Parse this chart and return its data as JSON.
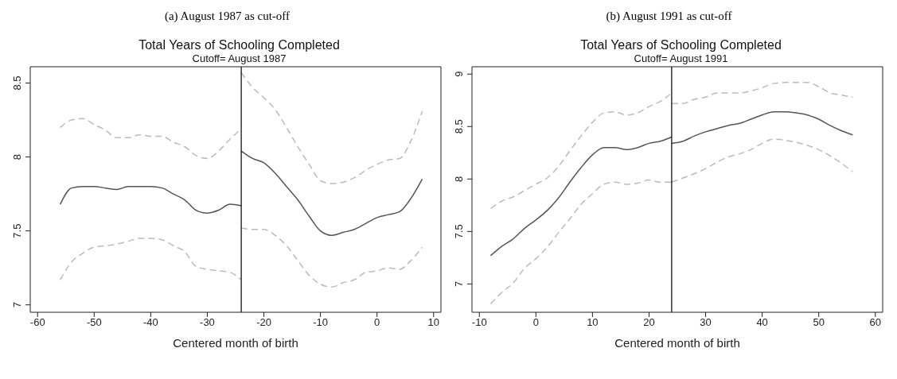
{
  "chart_data": [
    {
      "type": "line",
      "title": "Total Years of Schooling Completed",
      "subtitle": "Cutoff= August 1987",
      "xlabel": "Centered month of birth",
      "annotations": [
        "(a) August 1987 as cut-off"
      ],
      "xlim": [
        -61.3,
        11.3
      ],
      "ylim": [
        6.95,
        8.61
      ],
      "xticks": [
        -60,
        -50,
        -40,
        -30,
        -20,
        -10,
        0,
        10
      ],
      "yticks": [
        7,
        7.5,
        8,
        8.5
      ],
      "grid": false,
      "legend": false,
      "line_style": "solid",
      "marker": "none",
      "ref_lines": [
        {
          "axis": "x",
          "value": -24,
          "color": "#000000"
        }
      ],
      "series": [
        {
          "color": "#555555",
          "x": [
            -56,
            -54,
            -52,
            -50,
            -48,
            -46,
            -44,
            -42,
            -40,
            -38,
            -36,
            -34,
            -32,
            -30,
            -28,
            -26,
            -24
          ],
          "values": [
            7.68,
            7.79,
            7.8,
            7.8,
            7.79,
            7.78,
            7.8,
            7.8,
            7.8,
            7.79,
            7.75,
            7.71,
            7.64,
            7.62,
            7.64,
            7.68,
            7.67
          ]
        },
        {
          "color": "#bbbbbb",
          "line_style": "dashed",
          "x": [
            -56,
            -54,
            -52,
            -50,
            -48,
            -46,
            -44,
            -42,
            -40,
            -38,
            -36,
            -34,
            -32,
            -30,
            -28,
            -26,
            -24
          ],
          "values": [
            7.17,
            7.29,
            7.35,
            7.39,
            7.4,
            7.41,
            7.43,
            7.45,
            7.45,
            7.44,
            7.4,
            7.36,
            7.26,
            7.24,
            7.23,
            7.22,
            7.17
          ]
        },
        {
          "color": "#bbbbbb",
          "line_style": "dashed",
          "x": [
            -56,
            -54,
            -52,
            -50,
            -48,
            -46,
            -44,
            -42,
            -40,
            -38,
            -36,
            -34,
            -32,
            -30,
            -28,
            -26,
            -24
          ],
          "values": [
            8.2,
            8.25,
            8.26,
            8.22,
            8.18,
            8.13,
            8.13,
            8.15,
            8.14,
            8.14,
            8.1,
            8.07,
            8.01,
            7.99,
            8.04,
            8.12,
            8.19
          ]
        },
        {
          "color": "#555555",
          "x": [
            -24,
            -22,
            -20,
            -18,
            -16,
            -14,
            -12,
            -10,
            -8,
            -6,
            -4,
            -2,
            0,
            2,
            4,
            6,
            8
          ],
          "values": [
            8.04,
            7.99,
            7.96,
            7.89,
            7.8,
            7.71,
            7.6,
            7.5,
            7.47,
            7.49,
            7.51,
            7.55,
            7.59,
            7.61,
            7.63,
            7.72,
            7.85
          ]
        },
        {
          "color": "#bbbbbb",
          "line_style": "dashed",
          "x": [
            -24,
            -22,
            -20,
            -18,
            -16,
            -14,
            -12,
            -10,
            -8,
            -6,
            -4,
            -2,
            0,
            2,
            4,
            6,
            8
          ],
          "values": [
            7.52,
            7.51,
            7.51,
            7.47,
            7.4,
            7.3,
            7.2,
            7.14,
            7.12,
            7.15,
            7.17,
            7.22,
            7.23,
            7.25,
            7.24,
            7.3,
            7.39
          ]
        },
        {
          "color": "#bbbbbb",
          "line_style": "dashed",
          "x": [
            -24,
            -22,
            -20,
            -18,
            -16,
            -14,
            -12,
            -10,
            -8,
            -6,
            -4,
            -2,
            0,
            2,
            4,
            6,
            8
          ],
          "values": [
            8.57,
            8.47,
            8.4,
            8.32,
            8.2,
            8.07,
            7.95,
            7.84,
            7.82,
            7.83,
            7.86,
            7.91,
            7.95,
            7.98,
            7.99,
            8.11,
            8.31
          ]
        }
      ]
    },
    {
      "type": "line",
      "title": "Total Years of Schooling Completed",
      "subtitle": "Cutoff= August 1991",
      "xlabel": "Centered month of birth",
      "annotations": [
        "(b) August 1991 as cut-off"
      ],
      "xlim": [
        -11.3,
        61.3
      ],
      "ylim": [
        6.73,
        9.07
      ],
      "xticks": [
        -10,
        0,
        10,
        20,
        30,
        40,
        50,
        60
      ],
      "yticks": [
        7,
        7.5,
        8,
        8.5,
        9
      ],
      "grid": false,
      "legend": false,
      "line_style": "solid",
      "marker": "none",
      "ref_lines": [
        {
          "axis": "x",
          "value": 24,
          "color": "#000000"
        }
      ],
      "series": [
        {
          "color": "#555555",
          "x": [
            -8,
            -6,
            -4,
            -2,
            0,
            2,
            4,
            6,
            8,
            10,
            12,
            14,
            16,
            18,
            20,
            22,
            24
          ],
          "values": [
            7.27,
            7.36,
            7.43,
            7.53,
            7.61,
            7.7,
            7.82,
            7.97,
            8.11,
            8.23,
            8.3,
            8.3,
            8.28,
            8.3,
            8.34,
            8.36,
            8.4
          ]
        },
        {
          "color": "#bbbbbb",
          "line_style": "dashed",
          "x": [
            -8,
            -6,
            -4,
            -2,
            0,
            2,
            4,
            6,
            8,
            10,
            12,
            14,
            16,
            18,
            20,
            22,
            24
          ],
          "values": [
            6.81,
            6.92,
            7.01,
            7.15,
            7.24,
            7.35,
            7.49,
            7.62,
            7.76,
            7.86,
            7.95,
            7.97,
            7.95,
            7.96,
            7.99,
            7.97,
            7.97
          ]
        },
        {
          "color": "#bbbbbb",
          "line_style": "dashed",
          "x": [
            -8,
            -6,
            -4,
            -2,
            0,
            2,
            4,
            6,
            8,
            10,
            12,
            14,
            16,
            18,
            20,
            22,
            24
          ],
          "values": [
            7.72,
            7.79,
            7.83,
            7.89,
            7.95,
            8.01,
            8.12,
            8.27,
            8.41,
            8.54,
            8.63,
            8.64,
            8.61,
            8.63,
            8.69,
            8.74,
            8.82
          ]
        },
        {
          "color": "#555555",
          "x": [
            24,
            26,
            28,
            30,
            32,
            34,
            36,
            38,
            40,
            42,
            44,
            46,
            48,
            50,
            52,
            54,
            56
          ],
          "values": [
            8.34,
            8.36,
            8.41,
            8.45,
            8.48,
            8.51,
            8.53,
            8.57,
            8.61,
            8.64,
            8.64,
            8.63,
            8.61,
            8.57,
            8.51,
            8.46,
            8.42
          ]
        },
        {
          "color": "#bbbbbb",
          "line_style": "dashed",
          "x": [
            24,
            26,
            28,
            30,
            32,
            34,
            36,
            38,
            40,
            42,
            44,
            46,
            48,
            50,
            52,
            54,
            56
          ],
          "values": [
            7.97,
            8.01,
            8.05,
            8.1,
            8.16,
            8.21,
            8.24,
            8.28,
            8.34,
            8.38,
            8.37,
            8.35,
            8.32,
            8.28,
            8.22,
            8.15,
            8.07
          ]
        },
        {
          "color": "#bbbbbb",
          "line_style": "dashed",
          "x": [
            24,
            26,
            28,
            30,
            32,
            34,
            36,
            38,
            40,
            42,
            44,
            46,
            48,
            50,
            52,
            54,
            56
          ],
          "values": [
            8.72,
            8.72,
            8.76,
            8.78,
            8.82,
            8.82,
            8.82,
            8.84,
            8.87,
            8.91,
            8.92,
            8.92,
            8.92,
            8.88,
            8.82,
            8.8,
            8.78
          ]
        }
      ]
    }
  ]
}
